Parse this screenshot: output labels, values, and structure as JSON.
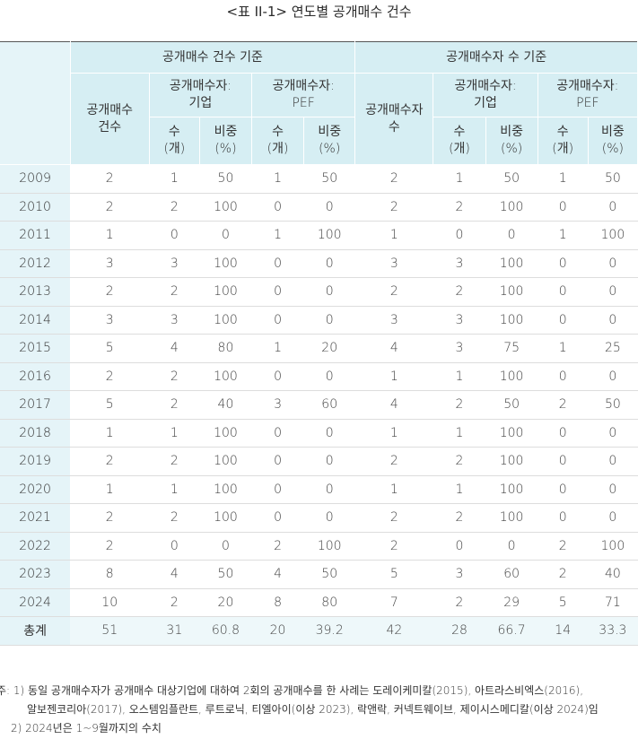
{
  "title": "<표 II-1> 연도별 공개매수 건수",
  "header": {
    "group_by_count": "공개매수 건수 기준",
    "group_by_buyer": "공개매수자 수 기준",
    "count_col": "공개매수\n건수",
    "buyer_count_col": "공개매수자\n수",
    "sub_company": "공개매수자:\n기업",
    "sub_pef": "공개매수자:\nPEF",
    "num": "수\n(개)",
    "share": "비중\n(%)"
  },
  "rows": [
    [
      "2009",
      "2",
      "1",
      "50",
      "1",
      "50",
      "2",
      "1",
      "50",
      "1",
      "50"
    ],
    [
      "2010",
      "2",
      "2",
      "100",
      "0",
      "0",
      "2",
      "2",
      "100",
      "0",
      "0"
    ],
    [
      "2011",
      "1",
      "0",
      "0",
      "1",
      "100",
      "1",
      "0",
      "0",
      "1",
      "100"
    ],
    [
      "2012",
      "3",
      "3",
      "100",
      "0",
      "0",
      "3",
      "3",
      "100",
      "0",
      "0"
    ],
    [
      "2013",
      "2",
      "2",
      "100",
      "0",
      "0",
      "2",
      "2",
      "100",
      "0",
      "0"
    ],
    [
      "2014",
      "3",
      "3",
      "100",
      "0",
      "0",
      "3",
      "3",
      "100",
      "0",
      "0"
    ],
    [
      "2015",
      "5",
      "4",
      "80",
      "1",
      "20",
      "4",
      "3",
      "75",
      "1",
      "25"
    ],
    [
      "2016",
      "2",
      "2",
      "100",
      "0",
      "0",
      "1",
      "1",
      "100",
      "0",
      "0"
    ],
    [
      "2017",
      "5",
      "2",
      "40",
      "3",
      "60",
      "4",
      "2",
      "50",
      "2",
      "50"
    ],
    [
      "2018",
      "1",
      "1",
      "100",
      "0",
      "0",
      "1",
      "1",
      "100",
      "0",
      "0"
    ],
    [
      "2019",
      "2",
      "2",
      "100",
      "0",
      "0",
      "2",
      "2",
      "100",
      "0",
      "0"
    ],
    [
      "2020",
      "1",
      "1",
      "100",
      "0",
      "0",
      "1",
      "1",
      "100",
      "0",
      "0"
    ],
    [
      "2021",
      "2",
      "2",
      "100",
      "0",
      "0",
      "2",
      "2",
      "100",
      "0",
      "0"
    ],
    [
      "2022",
      "2",
      "0",
      "0",
      "2",
      "100",
      "2",
      "0",
      "0",
      "2",
      "100"
    ],
    [
      "2023",
      "8",
      "4",
      "50",
      "4",
      "50",
      "5",
      "3",
      "60",
      "2",
      "40"
    ],
    [
      "2024",
      "10",
      "2",
      "20",
      "8",
      "80",
      "7",
      "2",
      "29",
      "5",
      "71"
    ],
    [
      "총계",
      "51",
      "31",
      "60.8",
      "20",
      "39.2",
      "42",
      "28",
      "66.7",
      "14",
      "33.3"
    ]
  ],
  "notes": {
    "note1_a": "주: 1) 동일 공개매수자가 공개매수 대상기업에 대하여 2회의 공개매수를 한 사례는 도레이케미칼(2015), 아트라스비엑스(2016),",
    "note1_b": "알보젠코리아(2017), 오스템임플란트, 루트로닉, 티엘아이(이상 2023), 락앤락, 커넥트웨이브, 제이시스메디칼(이상 2024)임",
    "note2": "2) 2024년은 1~9월까지의 수치"
  },
  "colors": {
    "header_bg": "#d6eef3",
    "year_col_bg": "#e5f4f8",
    "rule": "#dddddd"
  }
}
